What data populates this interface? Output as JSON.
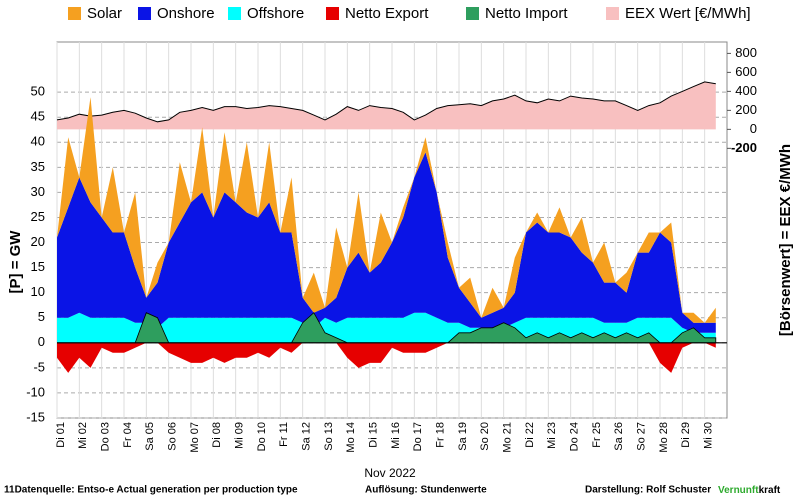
{
  "chart_data": {
    "type": "stacked-area",
    "legend": "top",
    "grid": true,
    "negative_color": "#e60000",
    "categories": [
      "Di 01",
      null,
      "Mi 02",
      null,
      "Do 03",
      null,
      "Fr 04",
      null,
      "Sa 05",
      null,
      "So 06",
      null,
      "Mo 07",
      null,
      "Di 08",
      null,
      "Mi 09",
      null,
      "Do 10",
      null,
      "Fr 11",
      null,
      "Sa 12",
      null,
      "So 13",
      null,
      "Mo 14",
      null,
      "Di 15",
      null,
      "Mi 16",
      null,
      "Do 17",
      null,
      "Fr 18",
      null,
      "Sa 19",
      null,
      "So 20",
      null,
      "Mo 21",
      null,
      "Di 22",
      null,
      "Mi 23",
      null,
      "Do 24",
      null,
      "Fr 25",
      null,
      "Sa 26",
      null,
      "So 27",
      null,
      "Mo 28",
      null,
      "Di 29",
      null,
      "Mi 30",
      null
    ],
    "xlabel": "Nov 2022",
    "ylabel": "[P] = GW",
    "y2label": "[Börsenwert] =  EEX  €/MWh",
    "ylim": [
      -15,
      60
    ],
    "yticks": [
      -15,
      -10,
      -5,
      0,
      5,
      10,
      15,
      20,
      25,
      30,
      35,
      40,
      45,
      50
    ],
    "y2lim": [
      -3040,
      920
    ],
    "y2ticks": [
      -200,
      0,
      200,
      400,
      600,
      800
    ],
    "series": [
      {
        "name": "Solar",
        "color": "#f5a020",
        "stack": true,
        "values": [
          0,
          14,
          0,
          21,
          0,
          13,
          0,
          15,
          0,
          4,
          0,
          12,
          0,
          13,
          0,
          12,
          0,
          14,
          0,
          12,
          0,
          11,
          0,
          8,
          0,
          14,
          0,
          12,
          0,
          10,
          0,
          2,
          0,
          3,
          0,
          3,
          0,
          5,
          0,
          5,
          0,
          7,
          0,
          2,
          0,
          5,
          0,
          7,
          0,
          8,
          0,
          4,
          0,
          4,
          0,
          4,
          0,
          2,
          0,
          3
        ]
      },
      {
        "name": "Onshore",
        "color": "#0a14e6",
        "stack": true,
        "values": [
          16,
          22,
          27,
          23,
          20,
          17,
          17,
          11,
          5,
          9,
          15,
          19,
          23,
          25,
          20,
          25,
          23,
          21,
          20,
          23,
          17,
          17,
          5,
          3,
          2,
          5,
          10,
          13,
          9,
          11,
          15,
          20,
          27,
          32,
          25,
          13,
          7,
          5,
          2,
          3,
          4,
          6,
          17,
          19,
          17,
          17,
          16,
          13,
          11,
          8,
          8,
          6,
          13,
          13,
          17,
          15,
          3,
          2,
          2,
          2
        ]
      },
      {
        "name": "Offshore",
        "color": "#00ffff",
        "stack": true,
        "values": [
          5,
          5,
          6,
          5,
          5,
          5,
          5,
          4,
          4,
          3,
          5,
          5,
          5,
          5,
          5,
          5,
          5,
          5,
          5,
          5,
          5,
          5,
          4,
          3,
          5,
          4,
          5,
          5,
          5,
          5,
          5,
          5,
          6,
          6,
          5,
          4,
          4,
          3,
          3,
          3,
          3,
          4,
          5,
          5,
          5,
          5,
          5,
          5,
          5,
          4,
          4,
          4,
          5,
          5,
          5,
          5,
          3,
          2,
          2,
          2
        ]
      },
      {
        "name": "Netto Export",
        "color": "#e60000",
        "stack": false,
        "values": [
          -3,
          -6,
          -3,
          -5,
          -1,
          -2,
          -2,
          -1,
          0,
          0,
          -2,
          -3,
          -4,
          -4,
          -3,
          -4,
          -3,
          -3,
          -2,
          -3,
          -1,
          -2,
          0,
          0,
          0,
          0,
          -3,
          -5,
          -4,
          -4,
          -1,
          -2,
          -2,
          -2,
          -1,
          0,
          0,
          0,
          0,
          0,
          0,
          0,
          0,
          0,
          0,
          0,
          0,
          0,
          0,
          0,
          0,
          0,
          0,
          0,
          -4,
          -6,
          -1,
          0,
          0,
          -1
        ]
      },
      {
        "name": "Netto Import",
        "color": "#2e9e5e",
        "stack": false,
        "values": [
          0,
          0,
          0,
          0,
          0,
          0,
          0,
          0,
          6,
          5,
          0,
          0,
          0,
          0,
          0,
          0,
          0,
          0,
          0,
          0,
          0,
          0,
          4,
          6,
          2,
          1,
          0,
          0,
          0,
          0,
          0,
          0,
          0,
          0,
          0,
          0,
          2,
          2,
          3,
          3,
          4,
          3,
          1,
          2,
          1,
          2,
          1,
          2,
          1,
          2,
          1,
          2,
          1,
          2,
          0,
          0,
          2,
          3,
          1,
          1
        ]
      },
      {
        "name": "EEX Wert [€/MWh]",
        "color": "#f8c0c0",
        "axis": "y2",
        "stack": false,
        "values": [
          100,
          120,
          160,
          140,
          150,
          180,
          200,
          170,
          120,
          80,
          100,
          180,
          200,
          230,
          200,
          240,
          240,
          220,
          230,
          250,
          240,
          220,
          200,
          150,
          100,
          160,
          240,
          200,
          250,
          230,
          220,
          180,
          100,
          150,
          220,
          250,
          260,
          270,
          250,
          300,
          320,
          360,
          300,
          280,
          320,
          300,
          350,
          330,
          320,
          300,
          300,
          250,
          200,
          250,
          280,
          350,
          400,
          450,
          500,
          480
        ]
      }
    ]
  },
  "footer": {
    "source": "11Datenquelle: Entso-e  Actual generation per production type",
    "resolution": "Auflösung: Stundenwerte",
    "author": "Darstellung:  Rolf Schuster",
    "brand_a": "Vernunft",
    "brand_b": "kraft"
  }
}
